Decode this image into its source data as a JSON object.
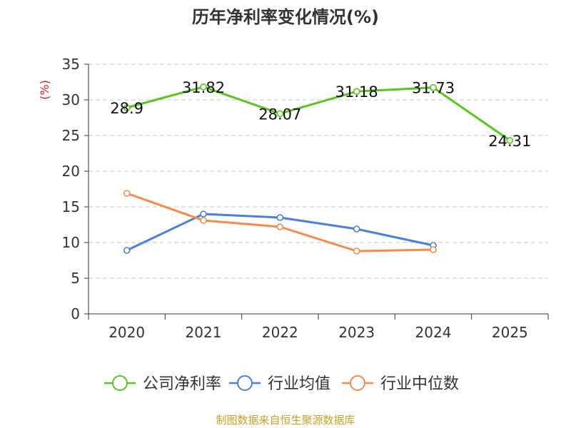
{
  "chart_data": {
    "type": "line",
    "title": "历年净利率变化情况(%)",
    "ylabel": "(%)",
    "xlabel": "",
    "categories": [
      "2020",
      "2021",
      "2022",
      "2023",
      "2024",
      "2025"
    ],
    "ylim": [
      0,
      35
    ],
    "yticks": [
      0,
      5,
      10,
      15,
      20,
      25,
      30,
      35
    ],
    "grid": true,
    "legend_position": "bottom",
    "series": [
      {
        "name": "公司净利率",
        "color": "#5cc31f",
        "values": [
          28.9,
          31.82,
          28.07,
          31.18,
          31.73,
          24.31
        ],
        "labels": [
          "28.9",
          "31.82",
          "28.07",
          "31.18",
          "31.73",
          "24.31"
        ]
      },
      {
        "name": "行业均值",
        "color": "#4a7fdc",
        "values": [
          8.9,
          14.0,
          13.5,
          11.9,
          9.6,
          null
        ]
      },
      {
        "name": "行业中位数",
        "color": "#f58b4c",
        "values": [
          16.9,
          13.1,
          12.2,
          8.8,
          9.0,
          null
        ]
      }
    ]
  },
  "source_text": "制图数据来自恒生聚源数据库"
}
